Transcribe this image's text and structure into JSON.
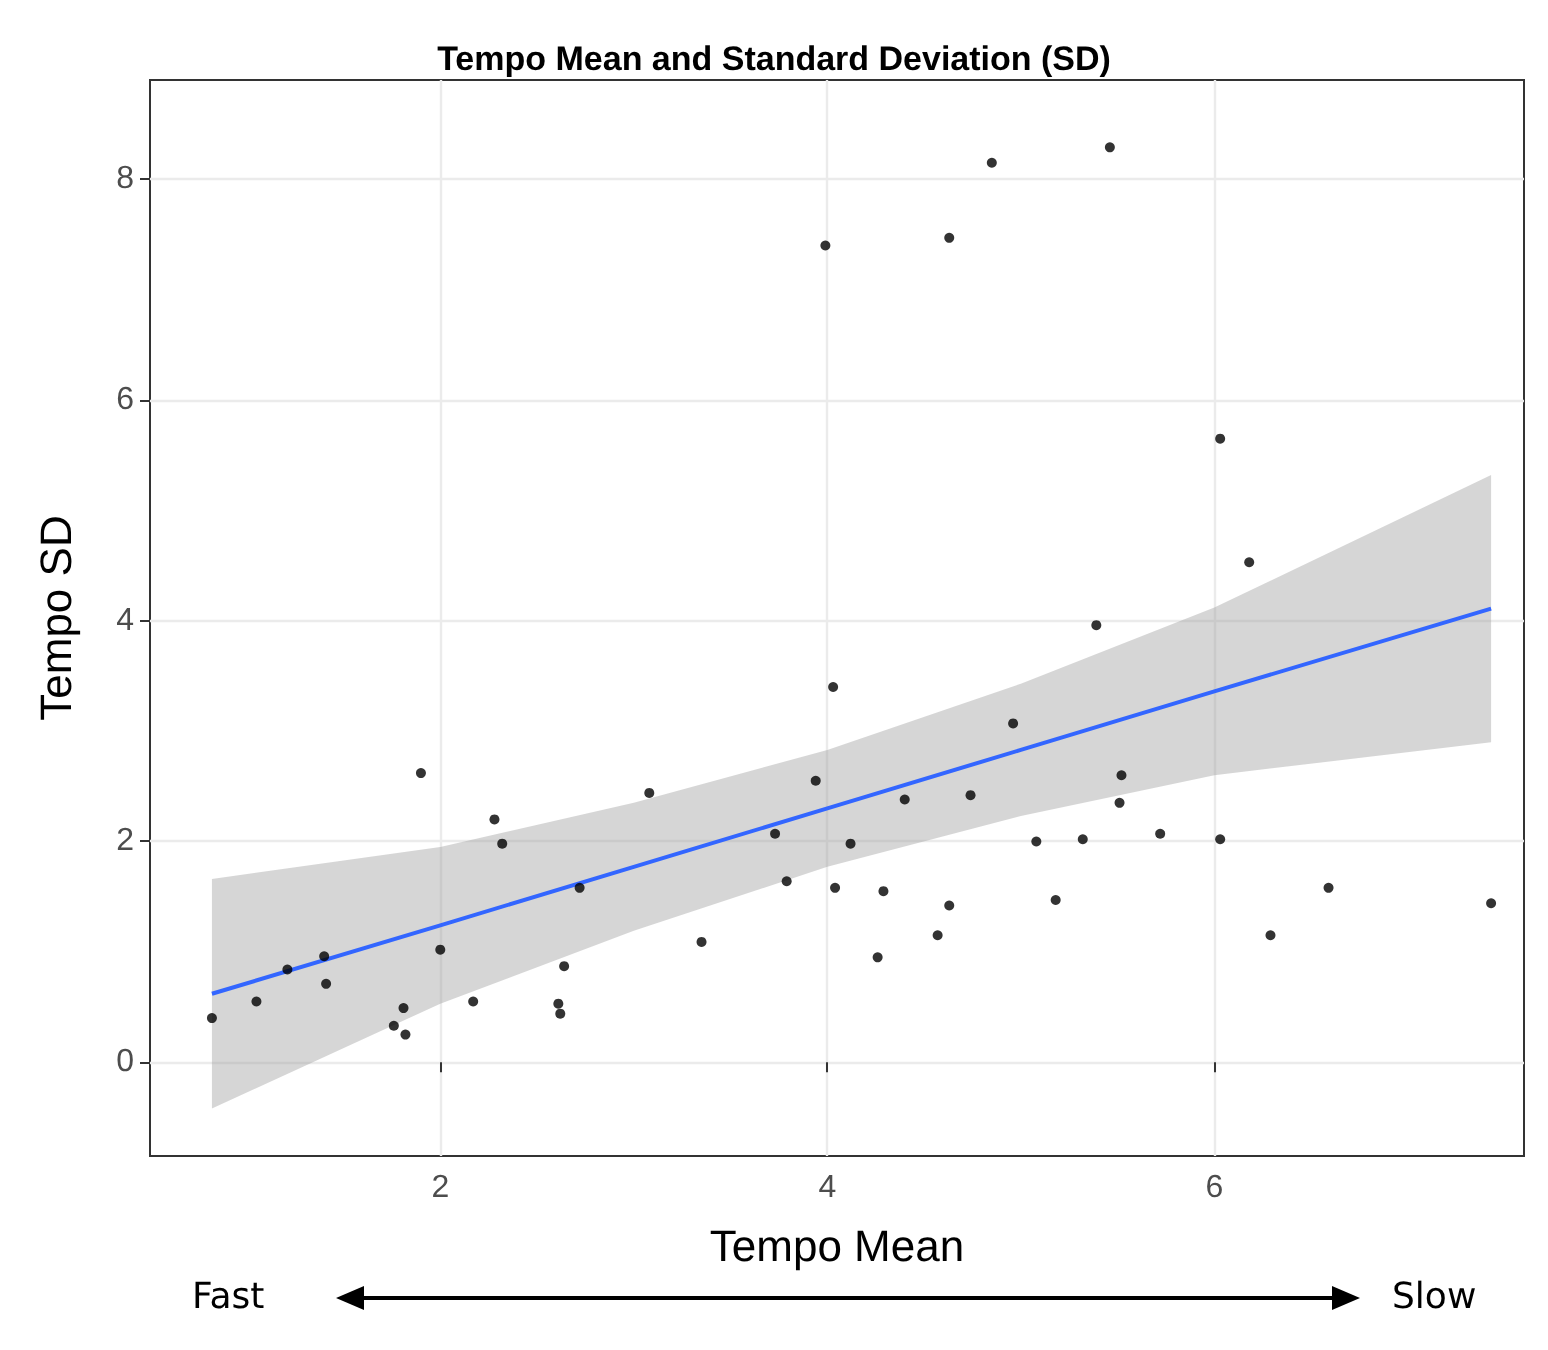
{
  "chart_data": {
    "type": "scatter",
    "title": "Tempo Mean and Standard Deviation (SD)",
    "xlabel": "Tempo Mean",
    "ylabel": "Tempo SD",
    "series": [
      {
        "color": "#000000",
        "marker": "circle",
        "x": [
          0.82,
          1.05,
          1.21,
          1.4,
          1.41,
          1.76,
          1.81,
          1.82,
          1.9,
          2.0,
          2.17,
          2.28,
          2.32,
          2.61,
          2.62,
          2.64,
          2.72,
          3.08,
          3.35,
          3.73,
          3.79,
          3.94,
          3.99,
          4.03,
          4.04,
          4.12,
          4.26,
          4.29,
          4.4,
          4.57,
          4.63,
          4.63,
          4.74,
          4.85,
          4.96,
          5.08,
          5.18,
          5.32,
          5.39,
          5.46,
          5.51,
          5.52,
          5.72,
          6.03,
          6.03,
          6.18,
          6.29,
          6.59,
          7.43
        ],
        "values": [
          0.4,
          0.55,
          0.84,
          0.96,
          0.71,
          0.33,
          0.49,
          0.25,
          2.62,
          1.02,
          0.55,
          2.2,
          1.98,
          0.53,
          0.44,
          0.87,
          1.58,
          2.44,
          1.09,
          2.07,
          1.64,
          2.55,
          7.4,
          3.4,
          1.58,
          1.98,
          0.95,
          1.55,
          2.38,
          1.15,
          1.42,
          7.47,
          2.42,
          8.15,
          3.07,
          2.0,
          1.47,
          2.02,
          3.96,
          8.29,
          2.35,
          2.6,
          2.07,
          5.65,
          2.02,
          4.53,
          1.15,
          1.58,
          1.44
        ]
      },
      {
        "type": "line",
        "color": "#3366ff",
        "x": [
          0.82,
          2,
          3,
          4,
          5,
          6,
          7.43
        ],
        "values": [
          0.62,
          1.24,
          1.77,
          2.3,
          2.83,
          3.36,
          4.11
        ],
        "lower": [
          -0.42,
          0.53,
          1.19,
          1.77,
          2.23,
          2.6,
          2.9
        ],
        "upper": [
          1.66,
          1.95,
          2.35,
          2.83,
          3.43,
          4.12,
          5.32
        ]
      }
    ],
    "xlim": [
      0.5,
      7.6
    ],
    "ylim": [
      -0.85,
      8.9
    ],
    "xticks": [
      2,
      4,
      6
    ],
    "yticks": [
      0,
      2,
      4,
      6,
      8
    ],
    "grid": true,
    "annotations": [
      "Fast",
      "Slow"
    ]
  }
}
